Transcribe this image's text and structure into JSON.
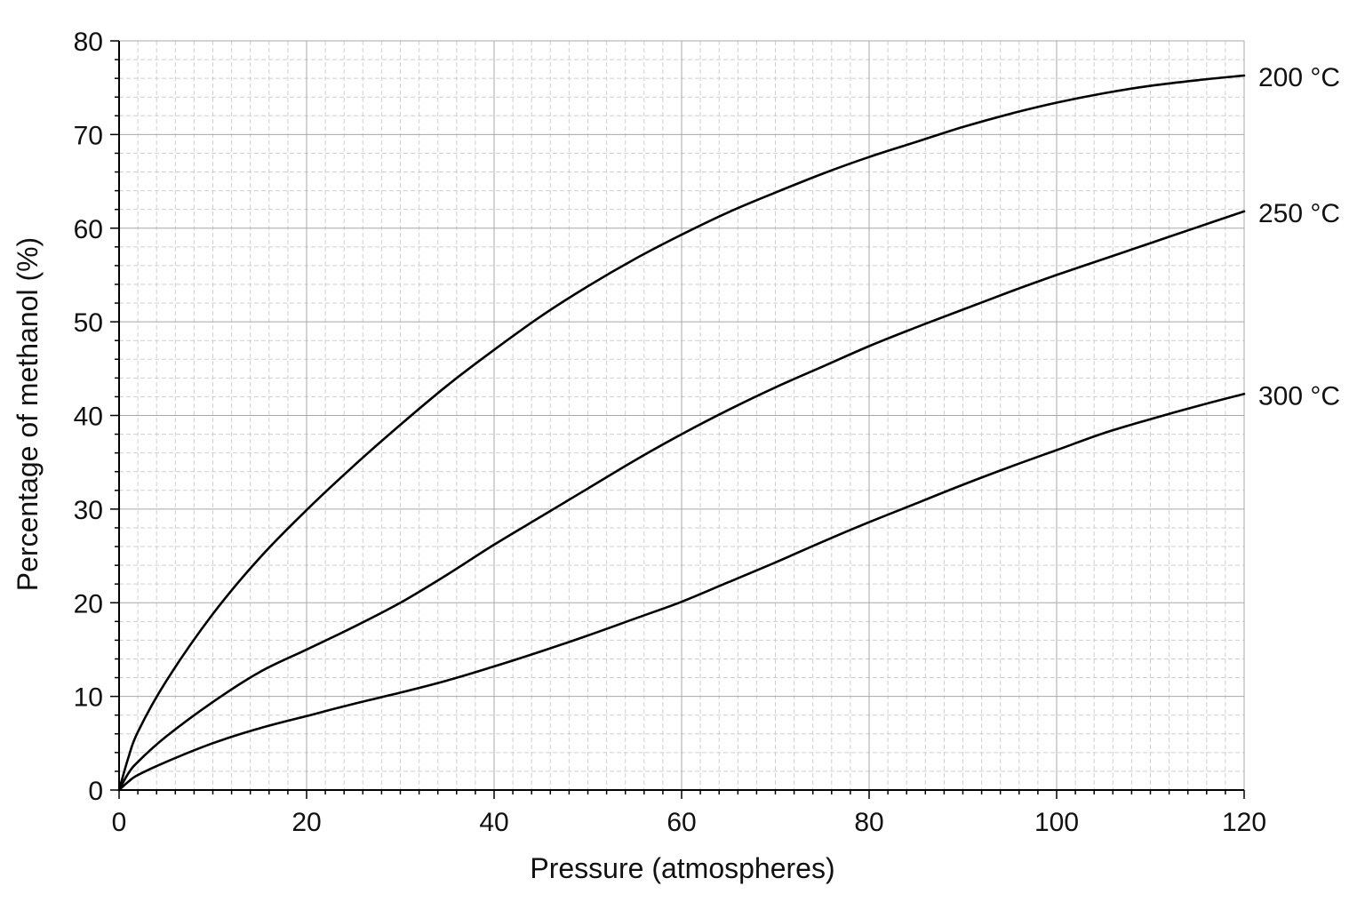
{
  "chart_data": {
    "type": "line",
    "title": "",
    "xlabel": "Pressure (atmospheres)",
    "ylabel": "Percentage of methanol (%)",
    "xlim": [
      0,
      120
    ],
    "ylim": [
      0,
      80
    ],
    "x_ticks": [
      0,
      20,
      40,
      60,
      80,
      100,
      120
    ],
    "y_ticks": [
      0,
      10,
      20,
      30,
      40,
      50,
      60,
      70,
      80
    ],
    "x_tick_labels": [
      "0",
      "20",
      "40",
      "60",
      "80",
      "100",
      "120"
    ],
    "y_tick_labels": [
      "0",
      "10",
      "20",
      "30",
      "40",
      "50",
      "60",
      "70",
      "80"
    ],
    "x_minor_step": 2,
    "y_minor_step": 2,
    "grid": true,
    "x": [
      0,
      1,
      2,
      5,
      10,
      15,
      20,
      25,
      30,
      35,
      40,
      45,
      50,
      55,
      60,
      65,
      70,
      75,
      80,
      85,
      90,
      95,
      100,
      105,
      110,
      115,
      120
    ],
    "series": [
      {
        "name": "200 °C",
        "color": "#000000",
        "values": [
          0,
          3.5,
          6.2,
          11.6,
          18.8,
          24.8,
          29.9,
          34.6,
          39.0,
          43.2,
          47.0,
          50.6,
          53.8,
          56.7,
          59.3,
          61.7,
          63.8,
          65.8,
          67.6,
          69.2,
          70.8,
          72.2,
          73.4,
          74.4,
          75.2,
          75.8,
          76.3
        ]
      },
      {
        "name": "250 °C",
        "color": "#000000",
        "values": [
          0,
          1.8,
          3.0,
          5.7,
          9.4,
          12.6,
          15.0,
          17.4,
          20.0,
          23.0,
          26.2,
          29.2,
          32.2,
          35.2,
          38.0,
          40.6,
          43.0,
          45.2,
          47.4,
          49.4,
          51.3,
          53.2,
          55.0,
          56.7,
          58.4,
          60.1,
          61.8
        ]
      },
      {
        "name": "300 °C",
        "color": "#000000",
        "values": [
          0,
          0.9,
          1.6,
          3.0,
          5.0,
          6.6,
          7.9,
          9.2,
          10.4,
          11.7,
          13.2,
          14.8,
          16.5,
          18.3,
          20.1,
          22.2,
          24.3,
          26.5,
          28.6,
          30.6,
          32.6,
          34.5,
          36.3,
          38.1,
          39.6,
          41.0,
          42.3
        ]
      }
    ]
  }
}
